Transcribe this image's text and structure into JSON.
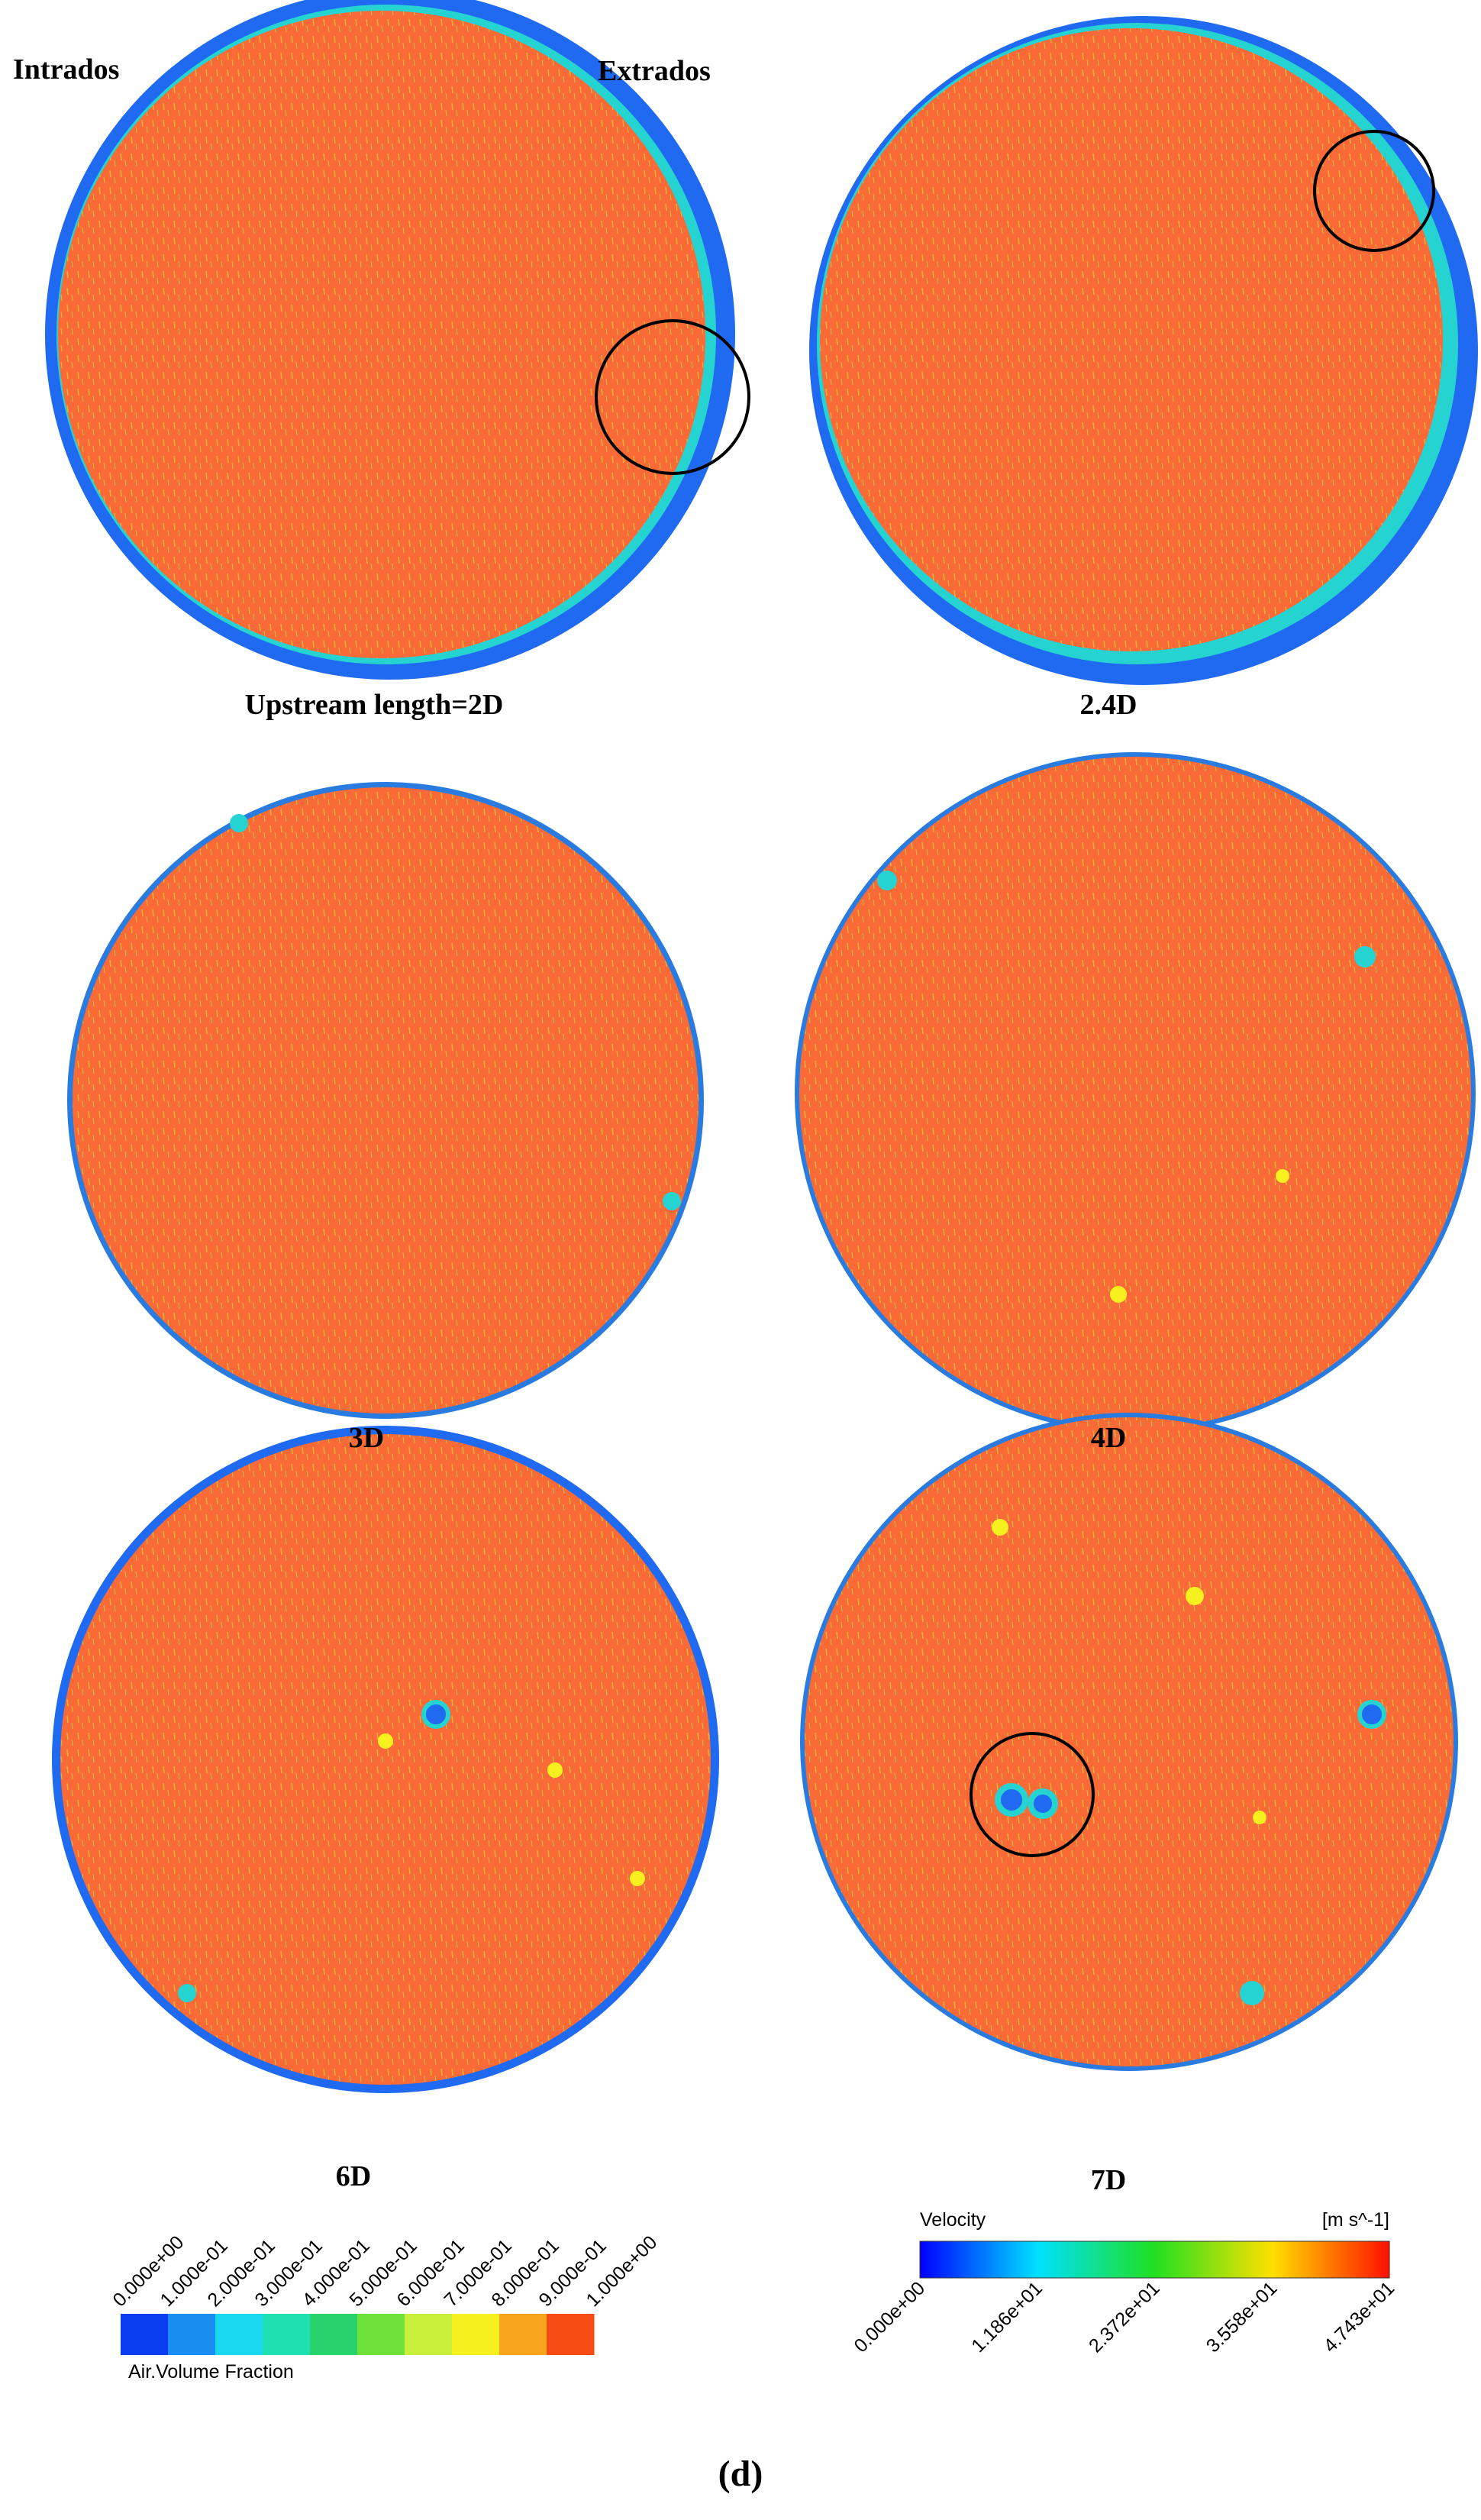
{
  "side_labels": {
    "left": "Intrados",
    "right": "Extrados"
  },
  "panels": [
    {
      "label": "Upstream length=2D"
    },
    {
      "label": "2.4D"
    },
    {
      "label": "3D"
    },
    {
      "label": "4D"
    },
    {
      "label": "6D"
    },
    {
      "label": "7D"
    }
  ],
  "legends": [
    {
      "title": "Air.Volume Fraction",
      "ticks": [
        "0.000e+00",
        "1.000e-01",
        "2.000e-01",
        "3.000e-01",
        "4.000e-01",
        "5.000e-01",
        "6.000e-01",
        "7.000e-01",
        "8.000e-01",
        "9.000e-01",
        "1.000e+00"
      ],
      "colors": [
        "#0a3cf0",
        "#1a8ef0",
        "#19d8ef",
        "#1fe0b0",
        "#27d36a",
        "#6ee03a",
        "#c8f03a",
        "#f7f01f",
        "#f7a51d",
        "#f64b12"
      ]
    },
    {
      "title": "Velocity",
      "unit": "[m s^-1]",
      "ticks": [
        "0.000e+00",
        "1.186e+01",
        "2.372e+01",
        "3.558e+01",
        "4.743e+01"
      ]
    }
  ],
  "caption": "(d)"
}
